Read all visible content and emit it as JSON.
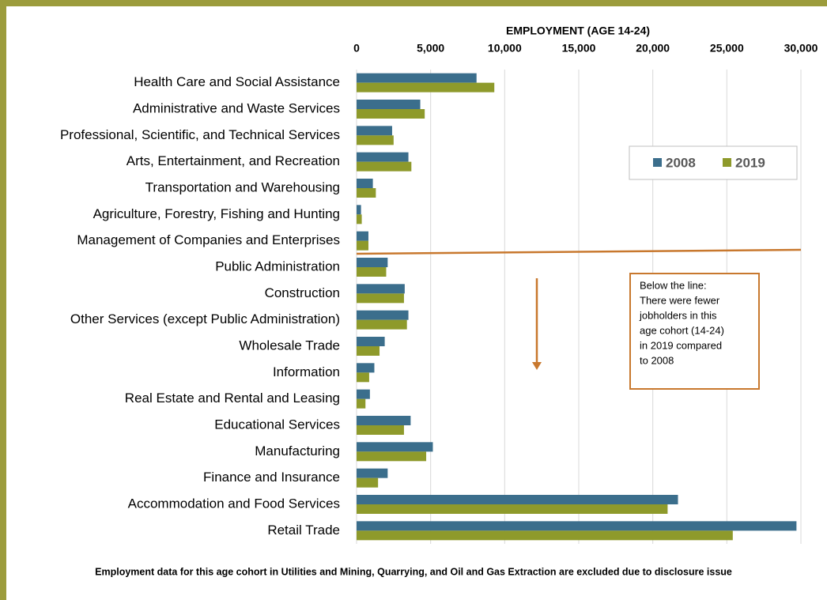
{
  "chart_data": {
    "type": "bar",
    "orientation": "horizontal",
    "x_axis_title": "EMPLOYMENT (AGE 14-24)",
    "categories": [
      "Health Care and Social Assistance",
      "Administrative and Waste Services",
      "Professional, Scientific, and Technical Services",
      "Arts, Entertainment, and Recreation",
      "Transportation and Warehousing",
      "Agriculture, Forestry, Fishing and Hunting",
      "Management of Companies and Enterprises",
      "Public Administration",
      "Construction",
      "Other Services (except Public Administration)",
      "Wholesale Trade",
      "Information",
      "Real Estate and Rental and Leasing",
      "Educational Services",
      "Manufacturing",
      "Finance and Insurance",
      "Accommodation and Food Services",
      "Retail Trade"
    ],
    "series": [
      {
        "name": "2008",
        "color": "#3b6e8c",
        "values": [
          8100,
          4300,
          2400,
          3500,
          1100,
          300,
          800,
          2100,
          3250,
          3500,
          1900,
          1200,
          900,
          3650,
          5150,
          2100,
          21700,
          29700
        ]
      },
      {
        "name": "2019",
        "color": "#8e9a2b",
        "values": [
          9300,
          4600,
          2500,
          3700,
          1300,
          350,
          800,
          2000,
          3200,
          3400,
          1550,
          850,
          600,
          3200,
          4700,
          1450,
          21000,
          25400
        ]
      }
    ],
    "xlim": [
      0,
      30000
    ],
    "xticks": [
      0,
      {
        "value": 5000,
        "label": "5,000"
      },
      {
        "value": 10000,
        "label": "10,000"
      },
      {
        "value": 15000,
        "label": "15,000"
      },
      {
        "value": 20000,
        "label": "20,000"
      },
      {
        "value": 25000,
        "label": "25,000"
      },
      {
        "value": 30000,
        "label": "30,000"
      }
    ],
    "grid": true,
    "legend_position": "upper right",
    "annotation": {
      "lines": [
        "Below the line:",
        "There were fewer",
        "jobholders in this",
        "age cohort (14-24)",
        "in 2019 compared",
        "to 2008"
      ]
    },
    "footnote": "Employment data for this age cohort in Utilities and Mining, Quarrying, and Oil and Gas Extraction are excluded due to disclosure issue"
  }
}
